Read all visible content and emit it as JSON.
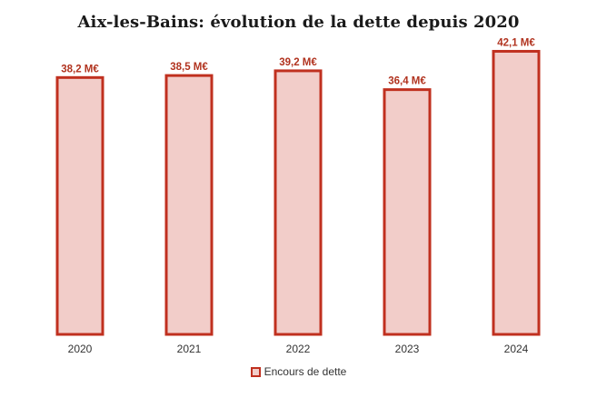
{
  "chart_data": {
    "type": "bar",
    "title": "Aix-les-Bains: évolution de la dette depuis 2020",
    "categories": [
      "2020",
      "2021",
      "2022",
      "2023",
      "2024"
    ],
    "series": [
      {
        "name": "Encours de dette",
        "values": [
          38.2,
          38.5,
          39.2,
          36.4,
          42.1
        ],
        "labels": [
          "38,2 M€",
          "38,5 M€",
          "39,2 M€",
          "36,4 M€",
          "42,1 M€"
        ]
      }
    ],
    "ylim": [
      0,
      45
    ],
    "grid": false,
    "legend_position": "bottom",
    "colors": {
      "bar_fill": "#f2cdc9",
      "bar_stroke": "#c0301f",
      "label": "#b1331f"
    }
  }
}
